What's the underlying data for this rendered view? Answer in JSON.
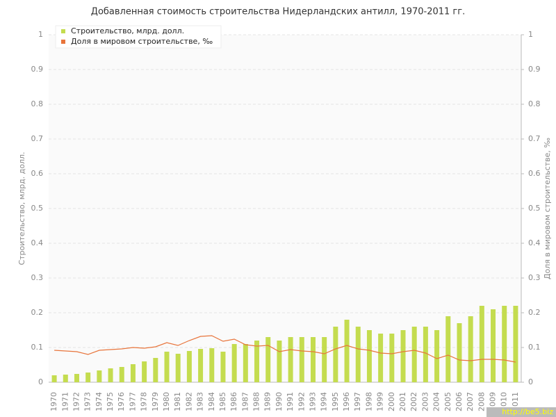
{
  "chart_data": {
    "type": "bar",
    "title": "Добавленная стоимость строительства Нидерландских антилл, 1970-2011 гг.",
    "y_label": "Строительство, млрд. долл.",
    "y2_label": "Доля в мировом строительстве, ‰",
    "watermark": "http://be5.biz",
    "categories": [
      "1970",
      "1971",
      "1972",
      "1973",
      "1974",
      "1975",
      "1976",
      "1977",
      "1978",
      "1979",
      "1980",
      "1981",
      "1982",
      "1983",
      "1984",
      "1985",
      "1986",
      "1987",
      "1988",
      "1989",
      "1990",
      "1991",
      "1992",
      "1993",
      "1994",
      "1995",
      "1996",
      "1997",
      "1998",
      "1999",
      "2000",
      "2001",
      "2002",
      "2003",
      "2004",
      "2005",
      "2006",
      "2007",
      "2008",
      "2009",
      "2010",
      "2011"
    ],
    "series": [
      {
        "name": "Строительство, млрд. долл.",
        "type": "bar",
        "color": "#c4dc4f",
        "values": [
          0.02,
          0.022,
          0.024,
          0.028,
          0.034,
          0.04,
          0.044,
          0.052,
          0.06,
          0.07,
          0.088,
          0.082,
          0.09,
          0.096,
          0.098,
          0.088,
          0.11,
          0.11,
          0.12,
          0.13,
          0.12,
          0.13,
          0.13,
          0.13,
          0.13,
          0.16,
          0.18,
          0.16,
          0.15,
          0.14,
          0.14,
          0.15,
          0.16,
          0.16,
          0.15,
          0.19,
          0.17,
          0.19,
          0.22,
          0.21,
          0.22,
          0.22
        ]
      },
      {
        "name": "Доля в мировом строительстве, ‰",
        "type": "line",
        "axis": "y2",
        "color": "#e8743b",
        "values": [
          0.092,
          0.09,
          0.088,
          0.08,
          0.092,
          0.094,
          0.096,
          0.1,
          0.098,
          0.102,
          0.114,
          0.106,
          0.12,
          0.132,
          0.134,
          0.118,
          0.124,
          0.108,
          0.104,
          0.106,
          0.088,
          0.094,
          0.09,
          0.088,
          0.082,
          0.096,
          0.106,
          0.096,
          0.092,
          0.084,
          0.082,
          0.088,
          0.092,
          0.084,
          0.068,
          0.078,
          0.064,
          0.062,
          0.066,
          0.066,
          0.064,
          0.058
        ]
      }
    ],
    "ylim": [
      0,
      1
    ],
    "yticks": [
      0,
      0.1,
      0.2,
      0.3,
      0.4,
      0.5,
      0.6,
      0.7,
      0.8,
      0.9,
      1
    ],
    "y2lim": [
      0,
      1
    ],
    "y2ticks": [
      0,
      0.1,
      0.2,
      0.3,
      0.4,
      0.5,
      0.6,
      0.7,
      0.8,
      0.9,
      1
    ],
    "grid": true,
    "legend": "top-left"
  }
}
